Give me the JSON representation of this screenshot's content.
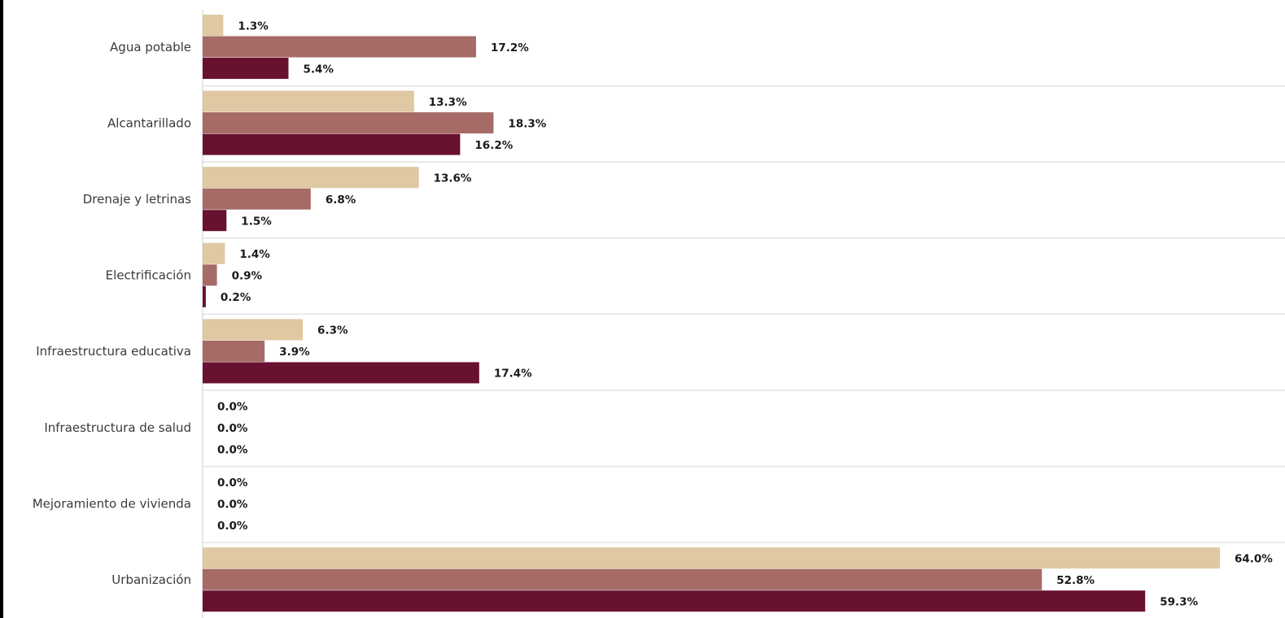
{
  "colors": {
    "series_1": "#dfc8a2",
    "series_2": "#a66b67",
    "series_3": "#691130",
    "separator": "#e3e3e3",
    "axis": "#cccccc"
  },
  "chart_data": {
    "type": "bar",
    "orientation": "horizontal",
    "categories": [
      "Agua potable",
      "Alcantarillado",
      "Drenaje y letrinas",
      "Electrificación",
      "Infraestructura educativa",
      "Infraestructura de salud",
      "Mejoramiento de vivienda",
      "Urbanización"
    ],
    "series": [
      {
        "values": [
          1.3,
          13.3,
          13.6,
          1.4,
          6.3,
          0.0,
          0.0,
          64.0
        ],
        "labels": [
          "1.3%",
          "13.3%",
          "13.6%",
          "1.4%",
          "6.3%",
          "0.0%",
          "0.0%",
          "64.0%"
        ]
      },
      {
        "values": [
          17.2,
          18.3,
          6.8,
          0.9,
          3.9,
          0.0,
          0.0,
          52.8
        ],
        "labels": [
          "17.2%",
          "18.3%",
          "6.8%",
          "0.9%",
          "3.9%",
          "0.0%",
          "0.0%",
          "52.8%"
        ]
      },
      {
        "values": [
          5.4,
          16.2,
          1.5,
          0.2,
          17.4,
          0.0,
          0.0,
          59.3
        ],
        "labels": [
          "5.4%",
          "16.2%",
          "1.5%",
          "0.2%",
          "17.4%",
          "0.0%",
          "0.0%",
          "59.3%"
        ]
      }
    ],
    "value_unit": "%",
    "xlim": [
      0,
      64
    ],
    "grid": false,
    "legend": "none",
    "title": "",
    "xlabel": "",
    "ylabel": ""
  }
}
